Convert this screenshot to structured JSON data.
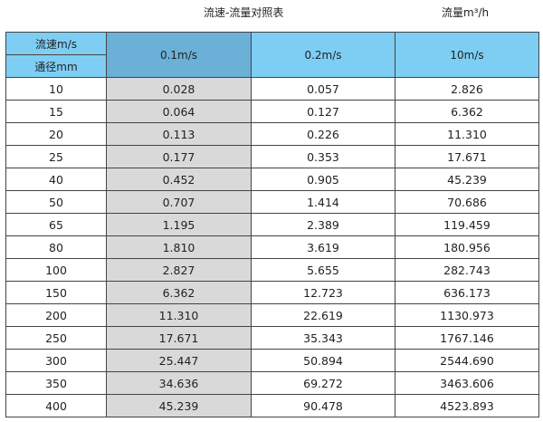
{
  "title": "流速-流量对照表",
  "unit_label": "流量m³/h",
  "header": {
    "velocity_label": "流速m/s",
    "diameter_label": "通径mm",
    "columns": [
      "0.1m/s",
      "0.2m/s",
      "10m/s"
    ]
  },
  "colors": {
    "header": "#7ecef4",
    "header_highlight": "#6bb0d6",
    "column_highlight": "#d9d9d9"
  },
  "rows": [
    [
      "10",
      "0.028",
      "0.057",
      "2.826"
    ],
    [
      "15",
      "0.064",
      "0.127",
      "6.362"
    ],
    [
      "20",
      "0.113",
      "0.226",
      "11.310"
    ],
    [
      "25",
      "0.177",
      "0.353",
      "17.671"
    ],
    [
      "40",
      "0.452",
      "0.905",
      "45.239"
    ],
    [
      "50",
      "0.707",
      "1.414",
      "70.686"
    ],
    [
      "65",
      "1.195",
      "2.389",
      "119.459"
    ],
    [
      "80",
      "1.810",
      "3.619",
      "180.956"
    ],
    [
      "100",
      "2.827",
      "5.655",
      "282.743"
    ],
    [
      "150",
      "6.362",
      "12.723",
      "636.173"
    ],
    [
      "200",
      "11.310",
      "22.619",
      "1130.973"
    ],
    [
      "250",
      "17.671",
      "35.343",
      "1767.146"
    ],
    [
      "300",
      "25.447",
      "50.894",
      "2544.690"
    ],
    [
      "350",
      "34.636",
      "69.272",
      "3463.606"
    ],
    [
      "400",
      "45.239",
      "90.478",
      "4523.893"
    ]
  ]
}
